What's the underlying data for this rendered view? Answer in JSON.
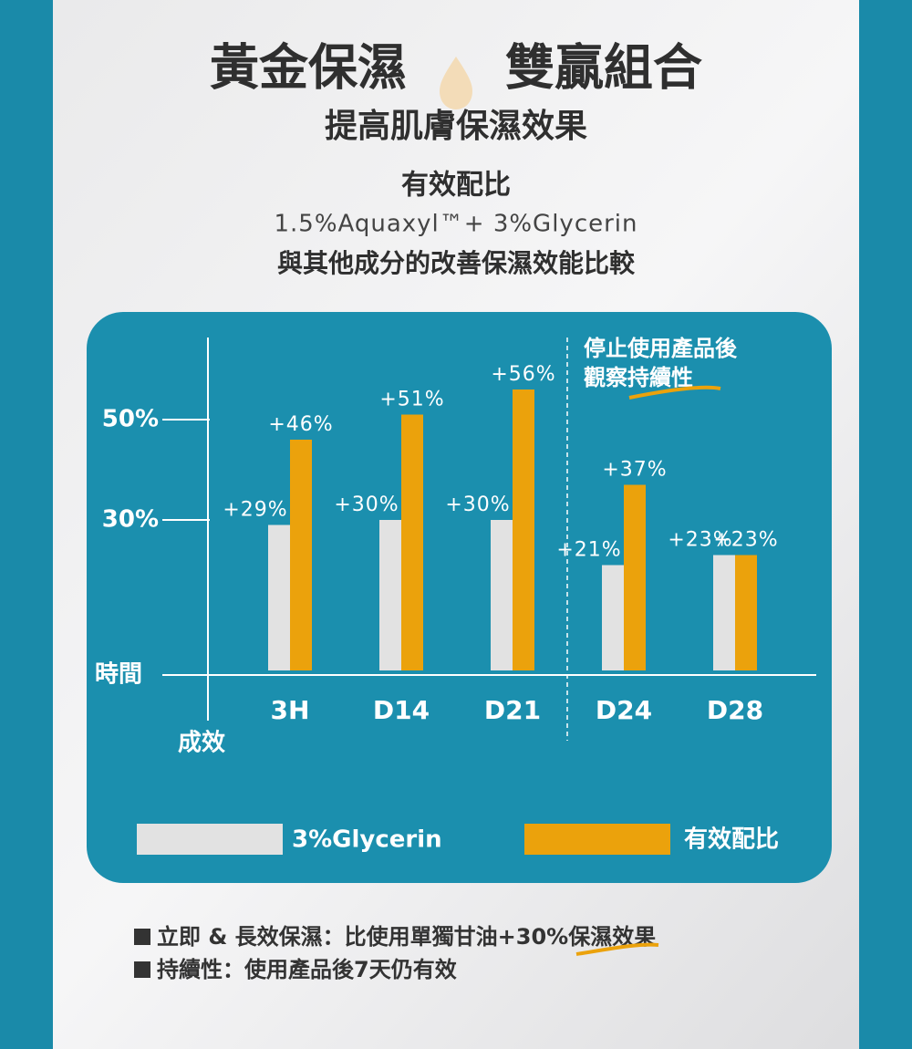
{
  "chart_data": {
    "type": "bar",
    "headline": [
      "黃金保濕",
      "雙贏組合"
    ],
    "subtitle": "提高肌膚保濕效果",
    "heading": "有效配比",
    "formula": "1.5%Aquaxyl™+ 3%Glycerin",
    "caption": "與其他成分的改善保濕效能比較",
    "annotation": [
      "停止使用產品後",
      "觀察持續性"
    ],
    "x_label": "時間",
    "y_label": "成效",
    "categories": [
      "3H",
      "D14",
      "D21",
      "D24",
      "D28"
    ],
    "series": [
      {
        "name": "3%Glycerin",
        "color": "#e2e2e2",
        "values": [
          29,
          30,
          30,
          21,
          23
        ],
        "value_labels": [
          "+29%",
          "+30%",
          "+30%",
          "+21%",
          "+23%"
        ]
      },
      {
        "name": "有效配比",
        "color": "#eba20c",
        "values": [
          46,
          51,
          56,
          37,
          23
        ],
        "value_labels": [
          "+46%",
          "+51%",
          "+56%",
          "+37%",
          "+23%"
        ]
      }
    ],
    "ylim": [
      0,
      66
    ],
    "yticks": [
      {
        "value": 30,
        "label": "30%"
      },
      {
        "value": 50,
        "label": "50%"
      }
    ],
    "grid": false,
    "footnotes": [
      "立即 & 長效保濕：比使用單獨甘油+30%保濕效果",
      "持續性：使用產品後7天仍有效"
    ]
  }
}
